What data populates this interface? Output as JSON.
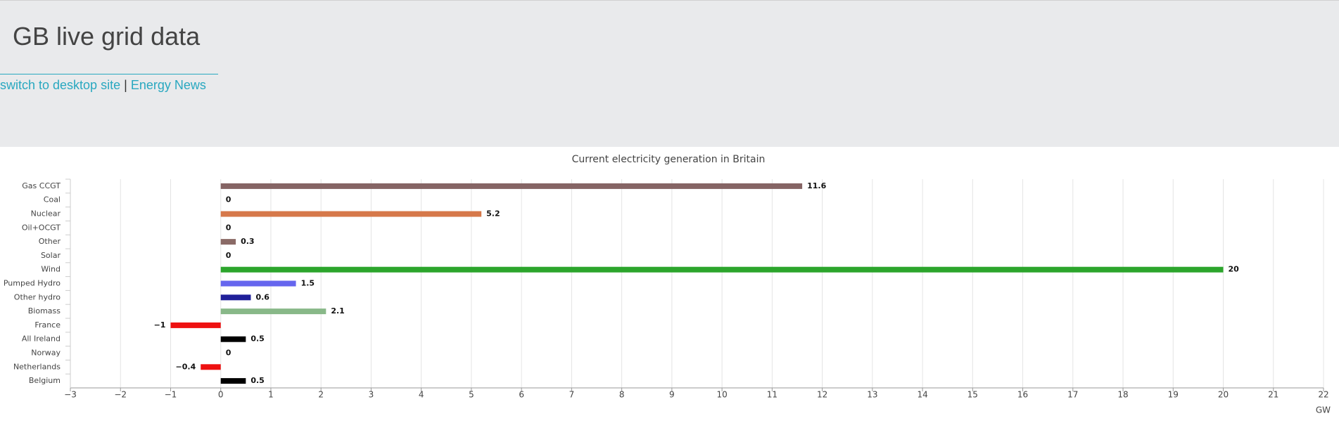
{
  "header": {
    "title": "GB live grid data",
    "links": [
      "switch to desktop site",
      "Energy News"
    ],
    "separator": "|"
  },
  "chart_data": {
    "type": "bar",
    "orientation": "horizontal",
    "title": "Current electricity generation in Britain",
    "x_label": "GW",
    "categories": [
      "Gas CCGT",
      "Coal",
      "Nuclear",
      "Oil+OCGT",
      "Other",
      "Solar",
      "Wind",
      "Pumped Hydro",
      "Other hydro",
      "Biomass",
      "France",
      "All Ireland",
      "Norway",
      "Netherlands",
      "Belgium"
    ],
    "values": [
      11.6,
      0,
      5.2,
      0,
      0.3,
      0,
      20,
      1.5,
      0.6,
      2.1,
      -1,
      0.5,
      0,
      -0.4,
      0.5
    ],
    "value_labels": [
      "11.6",
      "0",
      "5.2",
      "0",
      "0.3",
      "0",
      "20",
      "1.5",
      "0.6",
      "2.1",
      "−1",
      "0.5",
      "0",
      "−0.4",
      "0.5"
    ],
    "colors": [
      "#856464",
      "#000000",
      "#d6784a",
      "#000000",
      "#8a6a66",
      "#e8d000",
      "#2ca52c",
      "#6666ee",
      "#1f1f99",
      "#88b888",
      "#ee1111",
      "#000000",
      "#000000",
      "#ee1111",
      "#000000"
    ],
    "xlim": [
      -3,
      22
    ],
    "xticks": [
      {
        "value": -3,
        "label": "−3"
      },
      {
        "value": -2,
        "label": "−2"
      },
      {
        "value": -1,
        "label": "−1"
      },
      0,
      1,
      2,
      3,
      4,
      5,
      6,
      7,
      8,
      9,
      10,
      11,
      12,
      13,
      14,
      15,
      16,
      17,
      18,
      19,
      20,
      21,
      22
    ],
    "grid": true
  }
}
